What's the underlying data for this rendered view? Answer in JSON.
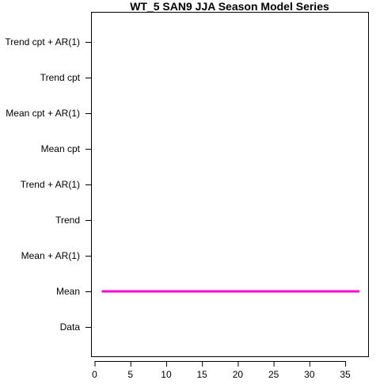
{
  "chart_data": {
    "type": "line",
    "title": "WT_5 SAN9 JJA Season Model Series",
    "xlabel": "",
    "ylabel": "",
    "x_ticks": [
      0,
      5,
      10,
      15,
      20,
      25,
      30,
      35
    ],
    "xlim": [
      -0.5,
      38.2
    ],
    "categories": [
      "Data",
      "Mean",
      "Mean + AR(1)",
      "Trend",
      "Trend + AR(1)",
      "Mean cpt",
      "Mean cpt + AR(1)",
      "Trend cpt",
      "Trend cpt + AR(1)"
    ],
    "series": [
      {
        "category": "Mean",
        "x_start": 1,
        "x_end": 37,
        "color": "#ff00cc"
      }
    ],
    "grid": false,
    "legend": "none"
  }
}
